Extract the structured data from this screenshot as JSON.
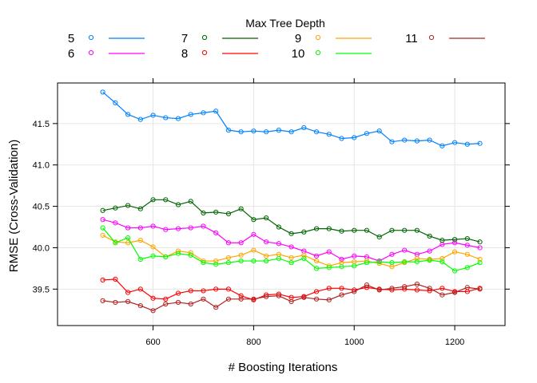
{
  "chart_data": {
    "type": "line",
    "xlabel": "# Boosting Iterations",
    "ylabel": "RMSE (Cross-Validation)",
    "legend_title": "Max Tree Depth",
    "legend_placement": "top",
    "grid": true,
    "xlim": [
      410,
      1300
    ],
    "ylim": [
      39.06,
      41.99
    ],
    "x_ticks": [
      600,
      800,
      1000,
      1200
    ],
    "y_ticks": [
      39.5,
      40.0,
      40.5,
      41.0,
      41.5
    ],
    "x_tick_labels": [
      "600",
      "800",
      "1000",
      "1200"
    ],
    "y_tick_labels": [
      "39.5",
      "40.0",
      "40.5",
      "41.0",
      "41.5"
    ],
    "x": [
      500,
      525,
      550,
      575,
      600,
      625,
      650,
      675,
      700,
      725,
      750,
      775,
      800,
      825,
      850,
      875,
      900,
      925,
      950,
      975,
      1000,
      1025,
      1050,
      1075,
      1100,
      1125,
      1150,
      1175,
      1200,
      1225,
      1250
    ],
    "series": [
      {
        "name": "5",
        "color": "#0080ff",
        "values": [
          41.88,
          41.75,
          41.61,
          41.55,
          41.6,
          41.57,
          41.56,
          41.61,
          41.63,
          41.65,
          41.42,
          41.4,
          41.41,
          41.4,
          41.42,
          41.4,
          41.45,
          41.4,
          41.37,
          41.32,
          41.33,
          41.38,
          41.41,
          41.28,
          41.3,
          41.29,
          41.3,
          41.23,
          41.27,
          41.25,
          41.26
        ]
      },
      {
        "name": "6",
        "color": "#ff00ff",
        "values": [
          40.34,
          40.3,
          40.24,
          40.24,
          40.26,
          40.22,
          40.23,
          40.24,
          40.26,
          40.18,
          40.06,
          40.06,
          40.16,
          40.07,
          40.05,
          40.01,
          39.96,
          39.9,
          39.95,
          39.86,
          39.9,
          39.89,
          39.84,
          39.92,
          39.97,
          39.92,
          39.96,
          40.04,
          40.06,
          40.03,
          40.0
        ]
      },
      {
        "name": "7",
        "color": "#006400",
        "values": [
          40.45,
          40.48,
          40.51,
          40.47,
          40.58,
          40.58,
          40.52,
          40.56,
          40.42,
          40.43,
          40.41,
          40.47,
          40.34,
          40.36,
          40.25,
          40.17,
          40.19,
          40.23,
          40.23,
          40.2,
          40.21,
          40.21,
          40.13,
          40.21,
          40.21,
          40.21,
          40.14,
          40.09,
          40.1,
          40.11,
          40.07
        ]
      },
      {
        "name": "8",
        "color": "#ff0000",
        "values": [
          39.61,
          39.62,
          39.46,
          39.5,
          39.39,
          39.38,
          39.45,
          39.48,
          39.48,
          39.5,
          39.5,
          39.42,
          39.37,
          39.43,
          39.44,
          39.4,
          39.41,
          39.47,
          39.51,
          39.51,
          39.49,
          39.52,
          39.5,
          39.49,
          39.5,
          39.49,
          39.48,
          39.51,
          39.47,
          39.47,
          39.51
        ]
      },
      {
        "name": "9",
        "color": "#ffa500",
        "values": [
          40.15,
          40.07,
          40.06,
          40.09,
          40.01,
          39.89,
          39.96,
          39.94,
          39.84,
          39.84,
          39.88,
          39.91,
          39.97,
          39.9,
          39.92,
          39.88,
          39.91,
          39.84,
          39.78,
          39.82,
          39.83,
          39.84,
          39.81,
          39.77,
          39.82,
          39.87,
          39.86,
          39.87,
          39.95,
          39.92,
          39.86
        ]
      },
      {
        "name": "10",
        "color": "#00ff00",
        "values": [
          40.24,
          40.06,
          40.12,
          39.86,
          39.9,
          39.89,
          39.93,
          39.91,
          39.82,
          39.8,
          39.82,
          39.84,
          39.84,
          39.84,
          39.87,
          39.82,
          39.87,
          39.75,
          39.76,
          39.77,
          39.78,
          39.82,
          39.83,
          39.82,
          39.83,
          39.83,
          39.85,
          39.83,
          39.72,
          39.76,
          39.82
        ]
      },
      {
        "name": "11",
        "color": "#b22222",
        "values": [
          39.36,
          39.34,
          39.35,
          39.3,
          39.24,
          39.32,
          39.34,
          39.32,
          39.38,
          39.28,
          39.38,
          39.38,
          39.38,
          39.41,
          39.42,
          39.35,
          39.4,
          39.38,
          39.37,
          39.43,
          39.47,
          39.55,
          39.49,
          39.51,
          39.53,
          39.56,
          39.51,
          39.43,
          39.46,
          39.52,
          39.5
        ]
      }
    ]
  }
}
